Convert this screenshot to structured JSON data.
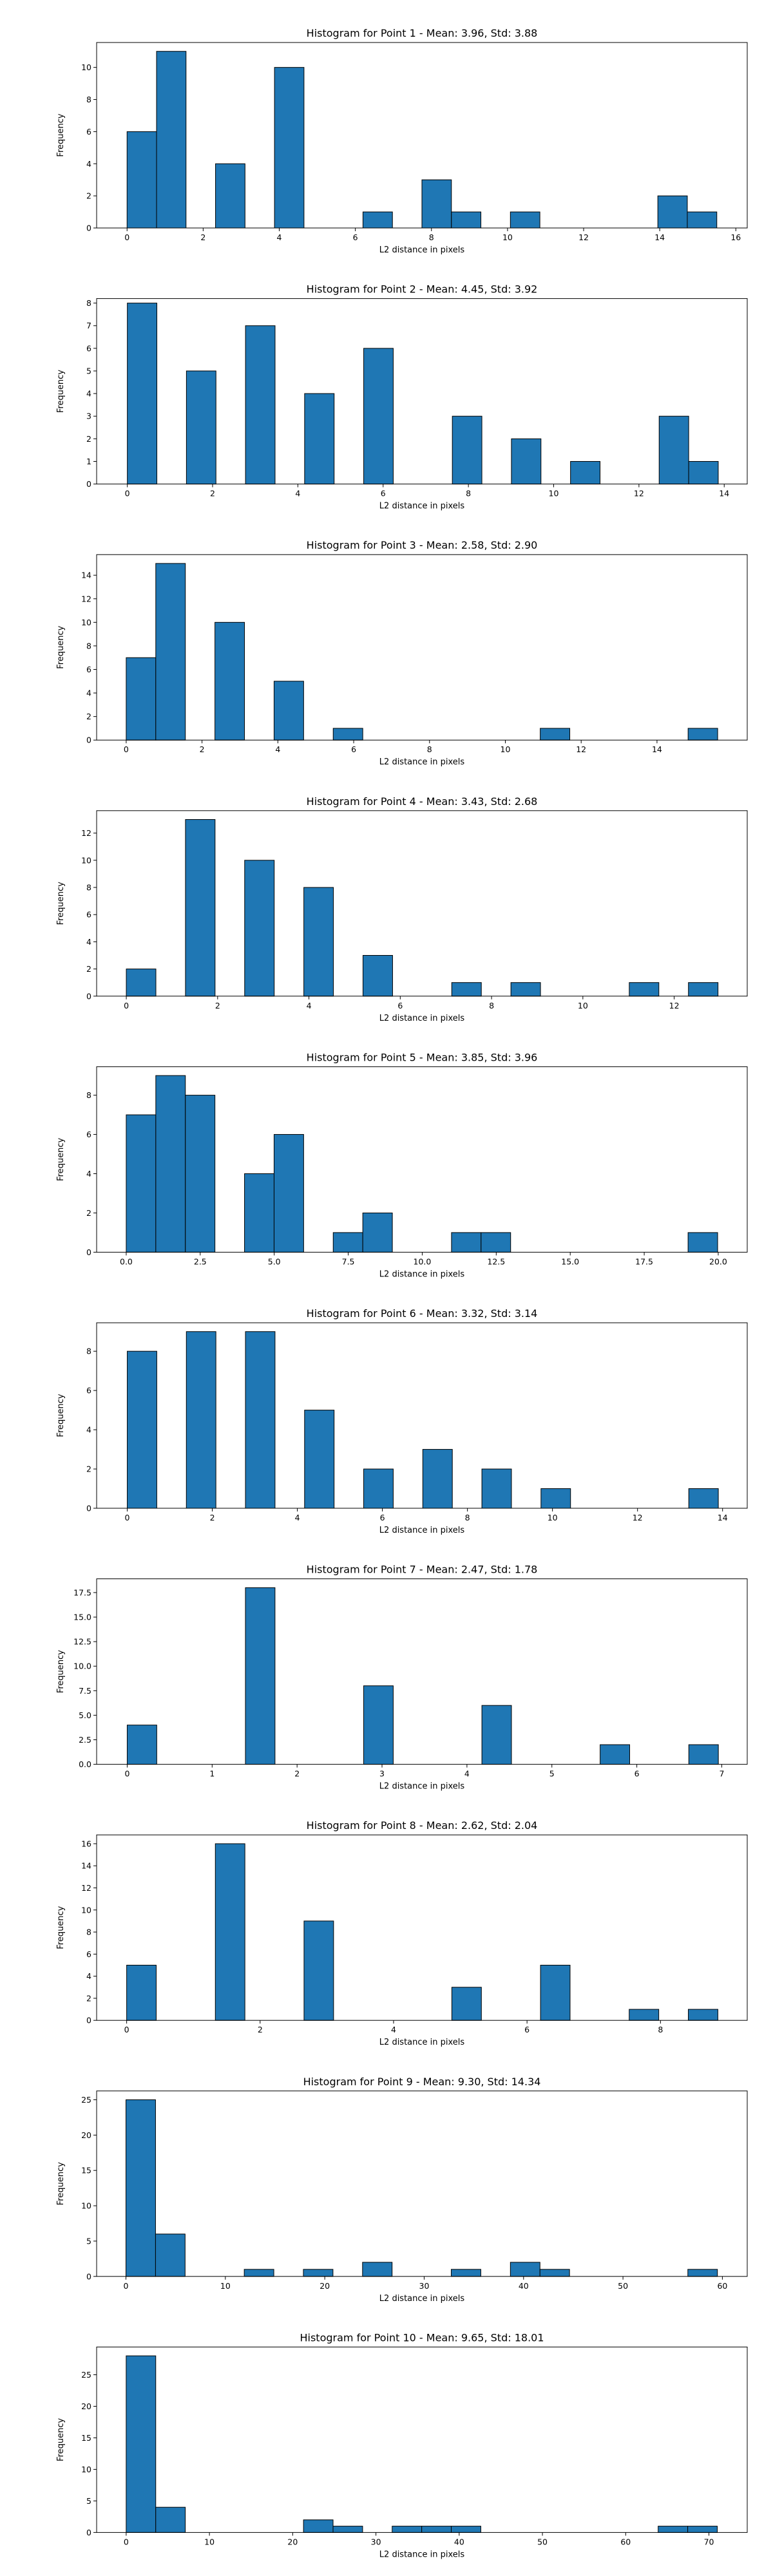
{
  "chart_data": [
    {
      "type": "bar",
      "title": "Histogram for Point 1 - Mean: 3.96, Std: 3.88",
      "xlabel": "L2 distance in pixels",
      "ylabel": "Frequency",
      "xlim": [
        -0.8,
        16.3
      ],
      "ylim": [
        0,
        11.55
      ],
      "xticks": [
        0,
        2,
        4,
        6,
        8,
        10,
        12,
        14,
        16
      ],
      "xtick_labels": [
        "0",
        "2",
        "4",
        "6",
        "8",
        "10",
        "12",
        "14",
        "16"
      ],
      "yticks": [
        0,
        2,
        4,
        6,
        8,
        10
      ],
      "ytick_labels": [
        "0",
        "2",
        "4",
        "6",
        "8",
        "10"
      ],
      "bin_start": 0,
      "bin_width": 0.775,
      "values": [
        6,
        11,
        0,
        4,
        0,
        10,
        0,
        0,
        1,
        0,
        3,
        1,
        0,
        1,
        0,
        0,
        0,
        0,
        2,
        1
      ],
      "grid": false,
      "bar_color": "#1f77b4",
      "edge_color": "#000000"
    },
    {
      "type": "bar",
      "title": "Histogram for Point 2 - Mean: 4.45, Std: 3.92",
      "xlabel": "L2 distance in pixels",
      "ylabel": "Frequency",
      "xlim": [
        -0.72,
        14.54
      ],
      "ylim": [
        0,
        8.2
      ],
      "xticks": [
        0,
        2,
        4,
        6,
        8,
        10,
        12,
        14
      ],
      "xtick_labels": [
        "0",
        "2",
        "4",
        "6",
        "8",
        "10",
        "12",
        "14"
      ],
      "yticks": [
        0,
        1,
        2,
        3,
        4,
        5,
        6,
        7,
        8
      ],
      "ytick_labels": [
        "0",
        "1",
        "2",
        "3",
        "4",
        "5",
        "6",
        "7",
        "8"
      ],
      "bin_start": 0,
      "bin_width": 0.693,
      "values": [
        8,
        0,
        5,
        0,
        7,
        0,
        4,
        0,
        6,
        0,
        0,
        3,
        0,
        2,
        0,
        1,
        0,
        0,
        3,
        1
      ],
      "grid": false,
      "bar_color": "#1f77b4",
      "edge_color": "#000000"
    },
    {
      "type": "bar",
      "title": "Histogram for Point 3 - Mean: 2.58, Std: 2.90",
      "xlabel": "L2 distance in pixels",
      "ylabel": "Frequency",
      "xlim": [
        -0.78,
        16.38
      ],
      "ylim": [
        0,
        15.75
      ],
      "xticks": [
        0,
        2,
        4,
        6,
        8,
        10,
        12,
        14
      ],
      "xtick_labels": [
        "0",
        "2",
        "4",
        "6",
        "8",
        "10",
        "12",
        "14"
      ],
      "yticks": [
        0,
        2,
        4,
        6,
        8,
        10,
        12,
        14
      ],
      "ytick_labels": [
        "0",
        "2",
        "4",
        "6",
        "8",
        "10",
        "12",
        "14"
      ],
      "bin_start": 0,
      "bin_width": 0.78,
      "values": [
        7,
        15,
        0,
        10,
        0,
        5,
        0,
        1,
        0,
        0,
        0,
        0,
        0,
        0,
        1,
        0,
        0,
        0,
        0,
        1
      ],
      "grid": false,
      "bar_color": "#1f77b4",
      "edge_color": "#000000"
    },
    {
      "type": "bar",
      "title": "Histogram for Point 4 - Mean: 3.43, Std: 2.68",
      "xlabel": "L2 distance in pixels",
      "ylabel": "Frequency",
      "xlim": [
        -0.65,
        13.6
      ],
      "ylim": [
        0,
        13.65
      ],
      "xticks": [
        0,
        2,
        4,
        6,
        8,
        10,
        12
      ],
      "xtick_labels": [
        "0",
        "2",
        "4",
        "6",
        "8",
        "10",
        "12"
      ],
      "yticks": [
        0,
        2,
        4,
        6,
        8,
        10,
        12
      ],
      "ytick_labels": [
        "0",
        "2",
        "4",
        "6",
        "8",
        "10",
        "12"
      ],
      "bin_start": 0,
      "bin_width": 0.648,
      "values": [
        2,
        0,
        13,
        0,
        10,
        0,
        8,
        0,
        3,
        0,
        0,
        1,
        0,
        1,
        0,
        0,
        0,
        1,
        0,
        1
      ],
      "grid": false,
      "bar_color": "#1f77b4",
      "edge_color": "#000000"
    },
    {
      "type": "bar",
      "title": "Histogram for Point 5 - Mean: 3.85, Std: 3.96",
      "xlabel": "L2 distance in pixels",
      "ylabel": "Frequency",
      "xlim": [
        -1.0,
        20.98
      ],
      "ylim": [
        0,
        9.45
      ],
      "xticks": [
        0.0,
        2.5,
        5.0,
        7.5,
        10.0,
        12.5,
        15.0,
        17.5,
        20.0
      ],
      "xtick_labels": [
        "0.0",
        "2.5",
        "5.0",
        "7.5",
        "10.0",
        "12.5",
        "15.0",
        "17.5",
        "20.0"
      ],
      "yticks": [
        0,
        2,
        4,
        6,
        8
      ],
      "ytick_labels": [
        "0",
        "2",
        "4",
        "6",
        "8"
      ],
      "bin_start": 0,
      "bin_width": 0.999,
      "values": [
        7,
        9,
        8,
        0,
        4,
        6,
        0,
        1,
        2,
        0,
        0,
        1,
        1,
        0,
        0,
        0,
        0,
        0,
        0,
        1
      ],
      "grid": false,
      "bar_color": "#1f77b4",
      "edge_color": "#000000"
    },
    {
      "type": "bar",
      "title": "Histogram for Point 6 - Mean: 3.32, Std: 3.14",
      "xlabel": "L2 distance in pixels",
      "ylabel": "Frequency",
      "xlim": [
        -0.72,
        14.58
      ],
      "ylim": [
        0,
        9.45
      ],
      "xticks": [
        0,
        2,
        4,
        6,
        8,
        10,
        12,
        14
      ],
      "xtick_labels": [
        "0",
        "2",
        "4",
        "6",
        "8",
        "10",
        "12",
        "14"
      ],
      "yticks": [
        0,
        2,
        4,
        6,
        8
      ],
      "ytick_labels": [
        "0",
        "2",
        "4",
        "6",
        "8"
      ],
      "bin_start": 0,
      "bin_width": 0.695,
      "values": [
        8,
        0,
        9,
        0,
        9,
        0,
        5,
        0,
        2,
        0,
        3,
        0,
        2,
        0,
        1,
        0,
        0,
        0,
        0,
        1
      ],
      "grid": false,
      "bar_color": "#1f77b4",
      "edge_color": "#000000"
    },
    {
      "type": "bar",
      "title": "Histogram for Point 7 - Mean: 2.47, Std: 1.78",
      "xlabel": "L2 distance in pixels",
      "ylabel": "Frequency",
      "xlim": [
        -0.36,
        7.3
      ],
      "ylim": [
        0,
        18.9
      ],
      "xticks": [
        0,
        1,
        2,
        3,
        4,
        5,
        6,
        7
      ],
      "xtick_labels": [
        "0",
        "1",
        "2",
        "3",
        "4",
        "5",
        "6",
        "7"
      ],
      "yticks": [
        0.0,
        2.5,
        5.0,
        7.5,
        10.0,
        12.5,
        15.0,
        17.5
      ],
      "ytick_labels": [
        "0.0",
        "2.5",
        "5.0",
        "7.5",
        "10.0",
        "12.5",
        "15.0",
        "17.5"
      ],
      "bin_start": 0,
      "bin_width": 0.348,
      "values": [
        4,
        0,
        0,
        0,
        18,
        0,
        0,
        0,
        8,
        0,
        0,
        0,
        6,
        0,
        0,
        0,
        2,
        0,
        0,
        2
      ],
      "grid": false,
      "bar_color": "#1f77b4",
      "edge_color": "#000000"
    },
    {
      "type": "bar",
      "title": "Histogram for Point 8 - Mean: 2.62, Std: 2.04",
      "xlabel": "L2 distance in pixels",
      "ylabel": "Frequency",
      "xlim": [
        -0.45,
        9.3
      ],
      "ylim": [
        0,
        16.8
      ],
      "xticks": [
        0,
        2,
        4,
        6,
        8
      ],
      "xtick_labels": [
        "0",
        "2",
        "4",
        "6",
        "8"
      ],
      "yticks": [
        0,
        2,
        4,
        6,
        8,
        10,
        12,
        14,
        16
      ],
      "ytick_labels": [
        "0",
        "2",
        "4",
        "6",
        "8",
        "10",
        "12",
        "14",
        "16"
      ],
      "bin_start": 0,
      "bin_width": 0.443,
      "values": [
        5,
        0,
        0,
        16,
        0,
        0,
        9,
        0,
        0,
        0,
        0,
        3,
        0,
        0,
        5,
        0,
        0,
        1,
        0,
        1
      ],
      "grid": false,
      "bar_color": "#1f77b4",
      "edge_color": "#000000"
    },
    {
      "type": "bar",
      "title": "Histogram for Point 9 - Mean: 9.30, Std: 14.34",
      "xlabel": "L2 distance in pixels",
      "ylabel": "Frequency",
      "xlim": [
        -2.95,
        62.5
      ],
      "ylim": [
        0,
        26.25
      ],
      "xticks": [
        0,
        10,
        20,
        30,
        40,
        50,
        60
      ],
      "xtick_labels": [
        "0",
        "10",
        "20",
        "30",
        "40",
        "50",
        "60"
      ],
      "yticks": [
        0,
        5,
        10,
        15,
        20,
        25
      ],
      "ytick_labels": [
        "0",
        "5",
        "10",
        "15",
        "20",
        "25"
      ],
      "bin_start": 0,
      "bin_width": 2.975,
      "values": [
        25,
        6,
        0,
        0,
        1,
        0,
        1,
        0,
        2,
        0,
        0,
        1,
        0,
        2,
        1,
        0,
        0,
        0,
        0,
        1
      ],
      "grid": false,
      "bar_color": "#1f77b4",
      "edge_color": "#000000"
    },
    {
      "type": "bar",
      "title": "Histogram for Point 10 - Mean: 9.65, Std: 18.01",
      "xlabel": "L2 distance in pixels",
      "ylabel": "Frequency",
      "xlim": [
        -3.55,
        74.6
      ],
      "ylim": [
        0,
        29.4
      ],
      "xticks": [
        0,
        10,
        20,
        30,
        40,
        50,
        60,
        70
      ],
      "xtick_labels": [
        "0",
        "10",
        "20",
        "30",
        "40",
        "50",
        "60",
        "70"
      ],
      "yticks": [
        0,
        5,
        10,
        15,
        20,
        25
      ],
      "ytick_labels": [
        "0",
        "5",
        "10",
        "15",
        "20",
        "25"
      ],
      "bin_start": 0,
      "bin_width": 3.55,
      "values": [
        28,
        4,
        0,
        0,
        0,
        0,
        2,
        1,
        0,
        1,
        1,
        1,
        0,
        0,
        0,
        0,
        0,
        0,
        1,
        1
      ],
      "grid": false,
      "bar_color": "#1f77b4",
      "edge_color": "#000000"
    }
  ]
}
